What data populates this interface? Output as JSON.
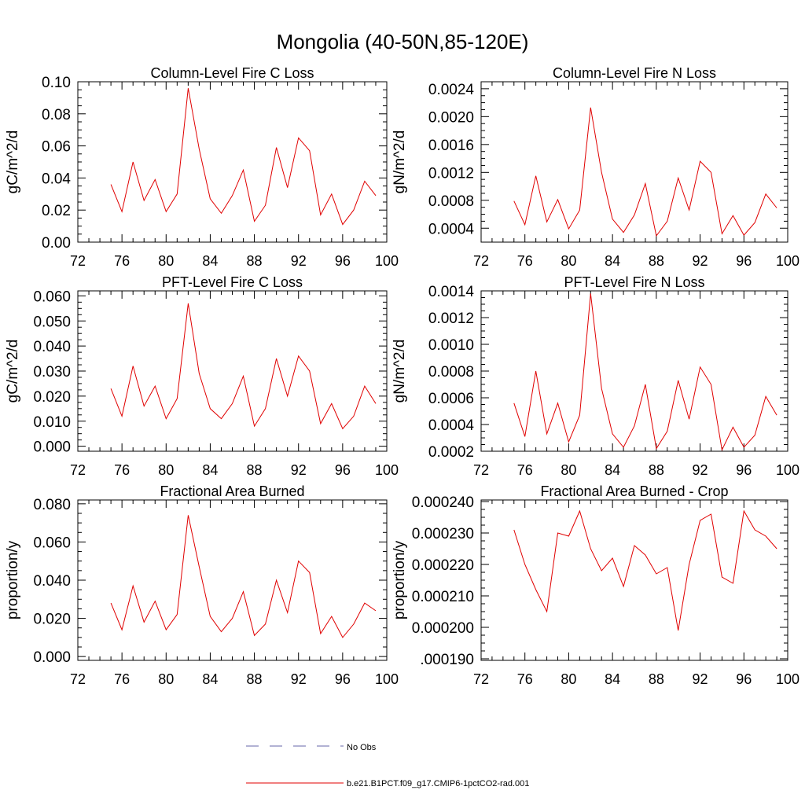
{
  "figure": {
    "title": "Mongolia (40-50N,85-120E)"
  },
  "legend": {
    "items": [
      {
        "label": "No Obs",
        "color": "#6666aa",
        "dashed": true
      },
      {
        "label": "b.e21.B1PCT.f09_g17.CMIP6-1pctCO2-rad.001",
        "color": "#e00000",
        "dashed": false
      }
    ]
  },
  "colors": {
    "series": "#e00000",
    "axis": "#000000"
  },
  "chart_data": [
    {
      "type": "line",
      "title": "Column-Level Fire C Loss",
      "xlabel": "",
      "ylabel": "gC/m^2/d",
      "xlim": [
        72,
        100
      ],
      "ylim": [
        0.0,
        0.1
      ],
      "xticks": [
        72,
        76,
        80,
        84,
        88,
        92,
        96,
        100
      ],
      "xtick_labels": [
        "72",
        "76",
        "80",
        "84",
        "88",
        "92",
        "96",
        "100"
      ],
      "yticks": [
        0.0,
        0.02,
        0.04,
        0.06,
        0.08,
        0.1
      ],
      "ytick_labels": [
        "0.00",
        "0.02",
        "0.04",
        "0.06",
        "0.08",
        "0.10"
      ],
      "ymargin": 0,
      "x": [
        75,
        76,
        77,
        78,
        79,
        80,
        81,
        82,
        83,
        84,
        85,
        86,
        87,
        88,
        89,
        90,
        91,
        92,
        93,
        94,
        95,
        96,
        97,
        98,
        99
      ],
      "series": [
        {
          "values": [
            0.036,
            0.019,
            0.05,
            0.026,
            0.039,
            0.019,
            0.03,
            0.096,
            0.058,
            0.027,
            0.018,
            0.029,
            0.045,
            0.013,
            0.023,
            0.059,
            0.034,
            0.065,
            0.057,
            0.017,
            0.03,
            0.011,
            0.02,
            0.038,
            0.029
          ]
        }
      ]
    },
    {
      "type": "line",
      "title": "Column-Level Fire N Loss",
      "xlabel": "",
      "ylabel": "gN/m^2/d",
      "xlim": [
        72,
        100
      ],
      "ylim": [
        0.0003,
        0.0024
      ],
      "xticks": [
        72,
        76,
        80,
        84,
        88,
        92,
        96,
        100
      ],
      "xtick_labels": [
        "72",
        "76",
        "80",
        "84",
        "88",
        "92",
        "96",
        "100"
      ],
      "yticks": [
        0.0004,
        0.0008,
        0.0012,
        0.0016,
        0.002,
        0.0024
      ],
      "ytick_labels": [
        "0.0004",
        "0.0008",
        "0.0012",
        "0.0016",
        "0.0020",
        "0.0024"
      ],
      "ymargin": 0.0001,
      "x": [
        75,
        76,
        77,
        78,
        79,
        80,
        81,
        82,
        83,
        84,
        85,
        86,
        87,
        88,
        89,
        90,
        91,
        92,
        93,
        94,
        95,
        96,
        97,
        98,
        99
      ],
      "series": [
        {
          "values": [
            0.00079,
            0.00045,
            0.00115,
            0.00049,
            0.00081,
            0.00039,
            0.00066,
            0.00213,
            0.0012,
            0.00053,
            0.00034,
            0.00059,
            0.00104,
            0.00029,
            0.0005,
            0.00112,
            0.00066,
            0.00136,
            0.0012,
            0.00032,
            0.00058,
            0.0003,
            0.00048,
            0.00089,
            0.00069
          ]
        }
      ]
    },
    {
      "type": "line",
      "title": "PFT-Level Fire C Loss",
      "xlabel": "",
      "ylabel": "gC/m^2/d",
      "xlim": [
        72,
        100
      ],
      "ylim": [
        0.0,
        0.06
      ],
      "xticks": [
        72,
        76,
        80,
        84,
        88,
        92,
        96,
        100
      ],
      "xtick_labels": [
        "72",
        "76",
        "80",
        "84",
        "88",
        "92",
        "96",
        "100"
      ],
      "yticks": [
        0.0,
        0.01,
        0.02,
        0.03,
        0.04,
        0.05,
        0.06
      ],
      "ytick_labels": [
        "0.000",
        "0.010",
        "0.020",
        "0.030",
        "0.040",
        "0.050",
        "0.060"
      ],
      "ymargin": 0.002,
      "x": [
        75,
        76,
        77,
        78,
        79,
        80,
        81,
        82,
        83,
        84,
        85,
        86,
        87,
        88,
        89,
        90,
        91,
        92,
        93,
        94,
        95,
        96,
        97,
        98,
        99
      ],
      "series": [
        {
          "values": [
            0.023,
            0.012,
            0.032,
            0.016,
            0.024,
            0.011,
            0.019,
            0.057,
            0.029,
            0.015,
            0.011,
            0.017,
            0.028,
            0.008,
            0.015,
            0.035,
            0.02,
            0.036,
            0.03,
            0.009,
            0.017,
            0.007,
            0.012,
            0.024,
            0.017
          ]
        }
      ]
    },
    {
      "type": "line",
      "title": "PFT-Level Fire N Loss",
      "xlabel": "",
      "ylabel": "gN/m^2/d",
      "xlim": [
        72,
        100
      ],
      "ylim": [
        0.0002,
        0.0014
      ],
      "xticks": [
        72,
        76,
        80,
        84,
        88,
        92,
        96,
        100
      ],
      "xtick_labels": [
        "72",
        "76",
        "80",
        "84",
        "88",
        "92",
        "96",
        "100"
      ],
      "yticks": [
        0.0002,
        0.0004,
        0.0006,
        0.0008,
        0.001,
        0.0012,
        0.0014
      ],
      "ytick_labels": [
        "0.0002",
        "0.0004",
        "0.0006",
        "0.0008",
        "0.0010",
        "0.0012",
        "0.0014"
      ],
      "ymargin": 0,
      "x": [
        75,
        76,
        77,
        78,
        79,
        80,
        81,
        82,
        83,
        84,
        85,
        86,
        87,
        88,
        89,
        90,
        91,
        92,
        93,
        94,
        95,
        96,
        97,
        98,
        99
      ],
      "series": [
        {
          "values": [
            0.00056,
            0.00031,
            0.0008,
            0.00033,
            0.00056,
            0.00027,
            0.00047,
            0.00138,
            0.00067,
            0.00033,
            0.00023,
            0.00039,
            0.0007,
            0.00022,
            0.00035,
            0.00073,
            0.00044,
            0.00083,
            0.0007,
            0.00021,
            0.00038,
            0.00023,
            0.00032,
            0.00061,
            0.00047
          ]
        }
      ]
    },
    {
      "type": "line",
      "title": "Fractional Area Burned",
      "xlabel": "",
      "ylabel": "proportion/y",
      "xlim": [
        72,
        100
      ],
      "ylim": [
        0.0,
        0.08
      ],
      "xticks": [
        72,
        76,
        80,
        84,
        88,
        92,
        96,
        100
      ],
      "xtick_labels": [
        "72",
        "76",
        "80",
        "84",
        "88",
        "92",
        "96",
        "100"
      ],
      "yticks": [
        0.0,
        0.02,
        0.04,
        0.06,
        0.08
      ],
      "ytick_labels": [
        "0.000",
        "0.020",
        "0.040",
        "0.060",
        "0.080"
      ],
      "ymargin": 0.002,
      "x": [
        75,
        76,
        77,
        78,
        79,
        80,
        81,
        82,
        83,
        84,
        85,
        86,
        87,
        88,
        89,
        90,
        91,
        92,
        93,
        94,
        95,
        96,
        97,
        98,
        99
      ],
      "series": [
        {
          "values": [
            0.028,
            0.014,
            0.037,
            0.018,
            0.029,
            0.014,
            0.022,
            0.074,
            0.047,
            0.021,
            0.013,
            0.02,
            0.034,
            0.011,
            0.017,
            0.04,
            0.023,
            0.05,
            0.044,
            0.012,
            0.021,
            0.01,
            0.017,
            0.028,
            0.024
          ]
        }
      ]
    },
    {
      "type": "line",
      "title": "Fractional Area Burned - Crop",
      "xlabel": "",
      "ylabel": "proportion/y",
      "xlim": [
        72,
        100
      ],
      "ylim": [
        0.00019,
        0.00024
      ],
      "xticks": [
        72,
        76,
        80,
        84,
        88,
        92,
        96,
        100
      ],
      "xtick_labels": [
        "72",
        "76",
        "80",
        "84",
        "88",
        "92",
        "96",
        "100"
      ],
      "yticks": [
        0.00019,
        0.0002,
        0.00021,
        0.00022,
        0.00023,
        0.00024
      ],
      "ytick_labels": [
        ".000190",
        "0.000200",
        "0.000210",
        "0.000220",
        "0.000230",
        "0.000240"
      ],
      "ymargin": 5e-07,
      "x": [
        75,
        76,
        77,
        78,
        79,
        80,
        81,
        82,
        83,
        84,
        85,
        86,
        87,
        88,
        89,
        90,
        91,
        92,
        93,
        94,
        95,
        96,
        97,
        98,
        99
      ],
      "series": [
        {
          "values": [
            0.000231,
            0.00022,
            0.000212,
            0.000205,
            0.00023,
            0.000229,
            0.000237,
            0.000225,
            0.000218,
            0.000222,
            0.000213,
            0.000226,
            0.000223,
            0.000217,
            0.000219,
            0.000199,
            0.00022,
            0.000234,
            0.000236,
            0.000216,
            0.000214,
            0.000237,
            0.000231,
            0.000229,
            0.000225
          ]
        }
      ]
    }
  ]
}
